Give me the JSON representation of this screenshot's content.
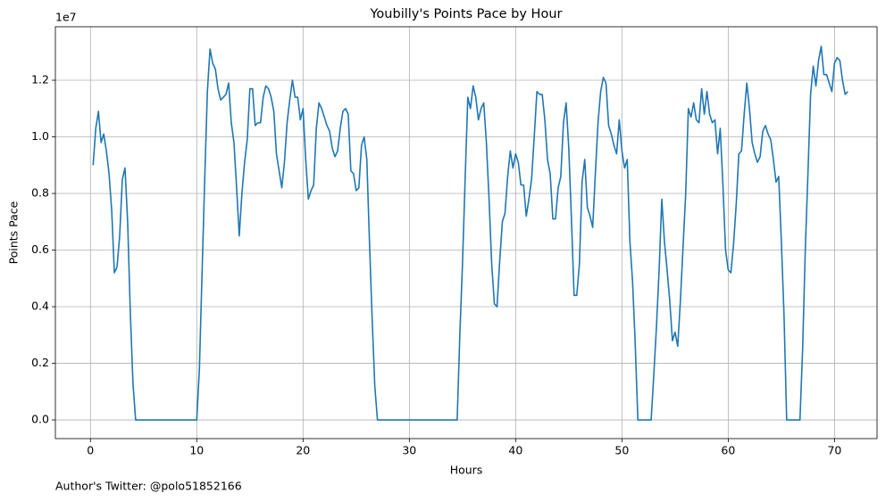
{
  "chart_data": {
    "type": "line",
    "title": "Youbilly's Points Pace by Hour",
    "x_label": "Hours",
    "y_label": "Points Pace",
    "y_offset_label": "1e7",
    "footer": "Author's Twitter: @polo51852166",
    "grid": true,
    "xlim": [
      -3.3,
      74.0
    ],
    "ylim": [
      -0.066,
      1.389
    ],
    "xticks": [
      0,
      10,
      20,
      30,
      40,
      50,
      60,
      70
    ],
    "yticks": [
      {
        "value": 0,
        "label": "0.0"
      },
      0.2,
      0.4,
      0.6,
      0.8,
      {
        "value": 1,
        "label": "1.0"
      },
      1.2
    ],
    "x": [
      0.25,
      0.5,
      0.75,
      1,
      1.25,
      1.5,
      1.75,
      2,
      2.25,
      2.5,
      2.75,
      3,
      3.25,
      3.5,
      3.75,
      4,
      4.25,
      5,
      6,
      7,
      8,
      9,
      10,
      10.25,
      10.5,
      10.75,
      11,
      11.25,
      11.5,
      11.75,
      12,
      12.25,
      12.5,
      12.75,
      13,
      13.25,
      13.5,
      13.75,
      14,
      14.25,
      14.5,
      14.75,
      15,
      15.25,
      15.5,
      15.75,
      16,
      16.25,
      16.5,
      16.75,
      17,
      17.25,
      17.5,
      17.75,
      18,
      18.25,
      18.5,
      18.75,
      19,
      19.25,
      19.5,
      19.75,
      20,
      20.25,
      20.5,
      20.75,
      21,
      21.25,
      21.5,
      21.75,
      22,
      22.25,
      22.5,
      22.75,
      23,
      23.25,
      23.5,
      23.75,
      24,
      24.25,
      24.5,
      24.75,
      25,
      25.25,
      25.5,
      25.75,
      26,
      26.25,
      26.5,
      26.75,
      27,
      28,
      29,
      30,
      31,
      32,
      33,
      34,
      34.5,
      34.75,
      35,
      35.25,
      35.5,
      35.75,
      36,
      36.25,
      36.5,
      36.75,
      37,
      37.25,
      37.5,
      37.75,
      38,
      38.25,
      38.5,
      38.75,
      39,
      39.25,
      39.5,
      39.75,
      40,
      40.25,
      40.5,
      40.75,
      41,
      41.25,
      41.5,
      41.75,
      42,
      42.25,
      42.5,
      42.75,
      43,
      43.25,
      43.5,
      43.75,
      44,
      44.25,
      44.5,
      44.75,
      45,
      45.25,
      45.5,
      45.75,
      46,
      46.25,
      46.5,
      46.75,
      47,
      47.25,
      47.5,
      47.75,
      48,
      48.25,
      48.5,
      48.75,
      49,
      49.25,
      49.5,
      49.75,
      50,
      50.25,
      50.5,
      50.75,
      51,
      51.25,
      51.5,
      52.75,
      53,
      53.25,
      53.5,
      53.75,
      54,
      54.25,
      54.5,
      54.75,
      55,
      55.25,
      55.5,
      55.75,
      56,
      56.25,
      56.5,
      56.75,
      57,
      57.25,
      57.5,
      57.75,
      58,
      58.25,
      58.5,
      58.75,
      59,
      59.25,
      59.5,
      59.75,
      60,
      60.25,
      60.5,
      60.75,
      61,
      61.25,
      61.5,
      61.75,
      62,
      62.25,
      62.5,
      62.75,
      63,
      63.25,
      63.5,
      63.75,
      64,
      64.25,
      64.5,
      64.75,
      65,
      65.25,
      65.5,
      66,
      66.75,
      67,
      67.25,
      67.5,
      67.75,
      68,
      68.25,
      68.5,
      68.75,
      69,
      69.25,
      69.5,
      69.75,
      70,
      70.25,
      70.5,
      70.75,
      71,
      71.25
    ],
    "series": [
      {
        "name": "Points Pace",
        "color": "#1f77b4",
        "values": [
          0.9,
          1.03,
          1.09,
          0.98,
          1.01,
          0.95,
          0.87,
          0.74,
          0.52,
          0.54,
          0.65,
          0.85,
          0.89,
          0.7,
          0.38,
          0.13,
          0.0,
          0,
          0,
          0,
          0,
          0,
          0.0,
          0.18,
          0.52,
          0.85,
          1.16,
          1.31,
          1.26,
          1.24,
          1.17,
          1.13,
          1.14,
          1.15,
          1.19,
          1.05,
          0.98,
          0.82,
          0.65,
          0.8,
          0.91,
          0.99,
          1.17,
          1.17,
          1.04,
          1.05,
          1.05,
          1.14,
          1.18,
          1.17,
          1.14,
          1.09,
          0.94,
          0.88,
          0.82,
          0.91,
          1.05,
          1.13,
          1.2,
          1.14,
          1.14,
          1.06,
          1.1,
          0.92,
          0.78,
          0.81,
          0.83,
          1.03,
          1.12,
          1.1,
          1.07,
          1.04,
          1.02,
          0.96,
          0.93,
          0.95,
          1.03,
          1.09,
          1.1,
          1.08,
          0.88,
          0.87,
          0.81,
          0.82,
          0.97,
          1.0,
          0.92,
          0.63,
          0.36,
          0.12,
          0.0,
          0,
          0,
          0,
          0,
          0,
          0,
          0,
          0,
          0.3,
          0.55,
          0.85,
          1.14,
          1.1,
          1.18,
          1.14,
          1.06,
          1.1,
          1.12,
          0.98,
          0.78,
          0.55,
          0.41,
          0.4,
          0.56,
          0.7,
          0.73,
          0.86,
          0.95,
          0.89,
          0.94,
          0.91,
          0.83,
          0.83,
          0.72,
          0.78,
          0.85,
          1.0,
          1.16,
          1.15,
          1.15,
          1.06,
          0.92,
          0.87,
          0.71,
          0.71,
          0.82,
          0.86,
          1.05,
          1.12,
          0.96,
          0.71,
          0.44,
          0.44,
          0.55,
          0.84,
          0.92,
          0.75,
          0.72,
          0.68,
          0.87,
          1.05,
          1.16,
          1.21,
          1.19,
          1.04,
          1.01,
          0.97,
          0.94,
          1.06,
          0.95,
          0.89,
          0.92,
          0.63,
          0.49,
          0.27,
          0.0,
          0.0,
          0.16,
          0.33,
          0.53,
          0.78,
          0.63,
          0.53,
          0.42,
          0.28,
          0.31,
          0.26,
          0.42,
          0.61,
          0.8,
          1.1,
          1.07,
          1.12,
          1.06,
          1.05,
          1.17,
          1.08,
          1.16,
          1.08,
          1.05,
          1.06,
          0.94,
          1.03,
          0.83,
          0.6,
          0.53,
          0.52,
          0.62,
          0.76,
          0.94,
          0.95,
          1.08,
          1.19,
          1.1,
          0.98,
          0.94,
          0.91,
          0.93,
          1.02,
          1.04,
          1.01,
          0.99,
          0.92,
          0.84,
          0.86,
          0.63,
          0.37,
          0.0,
          0,
          0.0,
          0.25,
          0.6,
          0.87,
          1.15,
          1.25,
          1.18,
          1.27,
          1.32,
          1.22,
          1.22,
          1.19,
          1.16,
          1.26,
          1.28,
          1.27,
          1.2,
          1.15,
          1.16
        ]
      }
    ]
  }
}
